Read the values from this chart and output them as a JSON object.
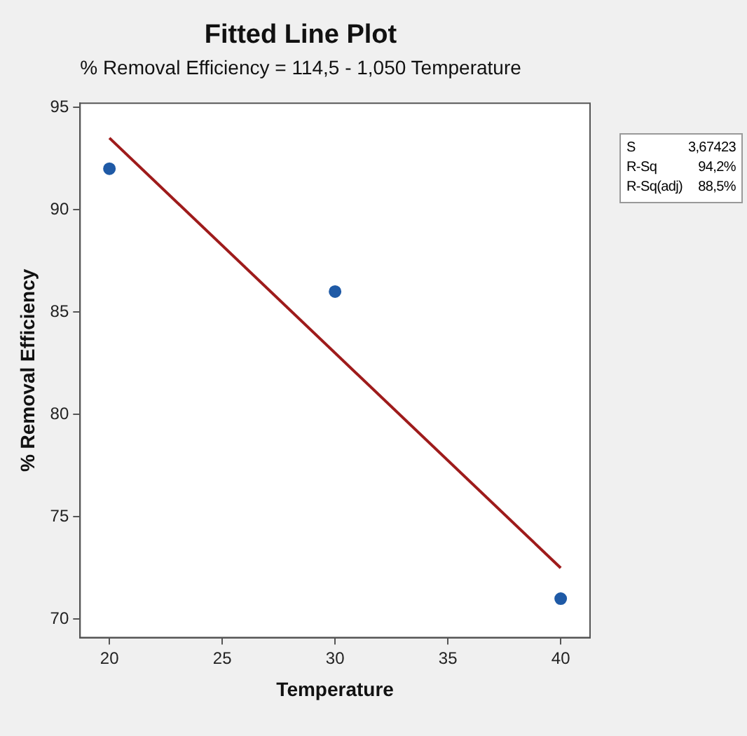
{
  "chart_data": {
    "type": "scatter",
    "title": "Fitted Line Plot",
    "subtitle": "% Removal Efficiency = 114,5 - 1,050 Temperature",
    "xlabel": "Temperature",
    "ylabel": "% Removal Efficiency",
    "annotations": [
      "S",
      "3,67423",
      "R-Sq",
      "94,2%",
      "R-Sq(adj)",
      "88,5%"
    ],
    "xlim": [
      18.7,
      41.3
    ],
    "xticks": [
      20,
      25,
      30,
      35,
      40
    ],
    "ylim": [
      69.1,
      95.2
    ],
    "yticks": [
      70,
      75,
      80,
      85,
      90,
      95
    ],
    "grid": false,
    "legend": false,
    "marker": "circle",
    "series": [
      {
        "type": "scatter",
        "color": "#1f5aa6",
        "x": [
          20,
          30,
          40
        ],
        "values": [
          92,
          86,
          71
        ]
      },
      {
        "type": "line",
        "color": "#9e1b1b",
        "x": [
          20,
          40
        ],
        "values": [
          93.5,
          72.5
        ],
        "line_style": "solid",
        "marker": "none"
      }
    ]
  }
}
